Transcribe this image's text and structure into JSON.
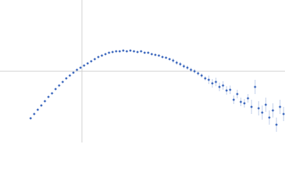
{
  "chart_data": {
    "type": "scatter",
    "x": [
      -72,
      -67,
      -62,
      -57,
      -52,
      -47,
      -42,
      -37,
      -32,
      -27,
      -22,
      -17,
      -12,
      -7,
      -2,
      3,
      8,
      13,
      18,
      23,
      28,
      33,
      38,
      43,
      48,
      53,
      58,
      63,
      68,
      73,
      78,
      83,
      88,
      93,
      98,
      103,
      108,
      113,
      118,
      123,
      128,
      133,
      138,
      143,
      148,
      153,
      158,
      163,
      168,
      173,
      178,
      183,
      188,
      193,
      198,
      203,
      208,
      213,
      218,
      223,
      228,
      233,
      238,
      243,
      248,
      253,
      258,
      263,
      268,
      273,
      278,
      283
    ],
    "values": [
      -66,
      -60,
      -54,
      -48,
      -42,
      -36,
      -31,
      -25,
      -20,
      -15,
      -10,
      -6,
      -2,
      2,
      5,
      8,
      11,
      14,
      17,
      20,
      22,
      24,
      26,
      27,
      28,
      28,
      29,
      28,
      29,
      28,
      27,
      28,
      26,
      26,
      24,
      23,
      22,
      20,
      19,
      17,
      15,
      12,
      10,
      7,
      5,
      2,
      0,
      -3,
      -6,
      -10,
      -12,
      -17,
      -15,
      -22,
      -20,
      -27,
      -26,
      -40,
      -32,
      -43,
      -45,
      -38,
      -50,
      -22,
      -52,
      -58,
      -47,
      -65,
      -55,
      -75,
      -50,
      -60
    ],
    "errors": [
      0.5,
      0.5,
      0.5,
      0.5,
      0.5,
      0.5,
      0.5,
      0.5,
      0.5,
      0.5,
      0.5,
      0.5,
      0.5,
      0.5,
      0.5,
      0.5,
      0.5,
      0.5,
      0.5,
      0.5,
      0.5,
      0.5,
      0.5,
      0.5,
      0.5,
      0.5,
      0.5,
      0.5,
      0.5,
      0.5,
      1,
      1,
      1,
      1,
      1,
      1,
      1,
      1,
      1,
      1,
      3,
      3,
      3,
      3,
      3,
      3,
      3,
      3,
      3,
      3,
      6,
      6,
      6,
      6,
      6,
      6,
      6,
      6,
      6,
      6,
      6,
      6,
      10,
      10,
      10,
      10,
      10,
      10,
      10,
      10,
      10,
      10
    ],
    "color": "#3e69be",
    "error_color": "#aebfe3",
    "axis_color": "#cfcfcf",
    "xlim": [
      -115,
      285
    ],
    "ylim": [
      -100,
      100
    ]
  }
}
